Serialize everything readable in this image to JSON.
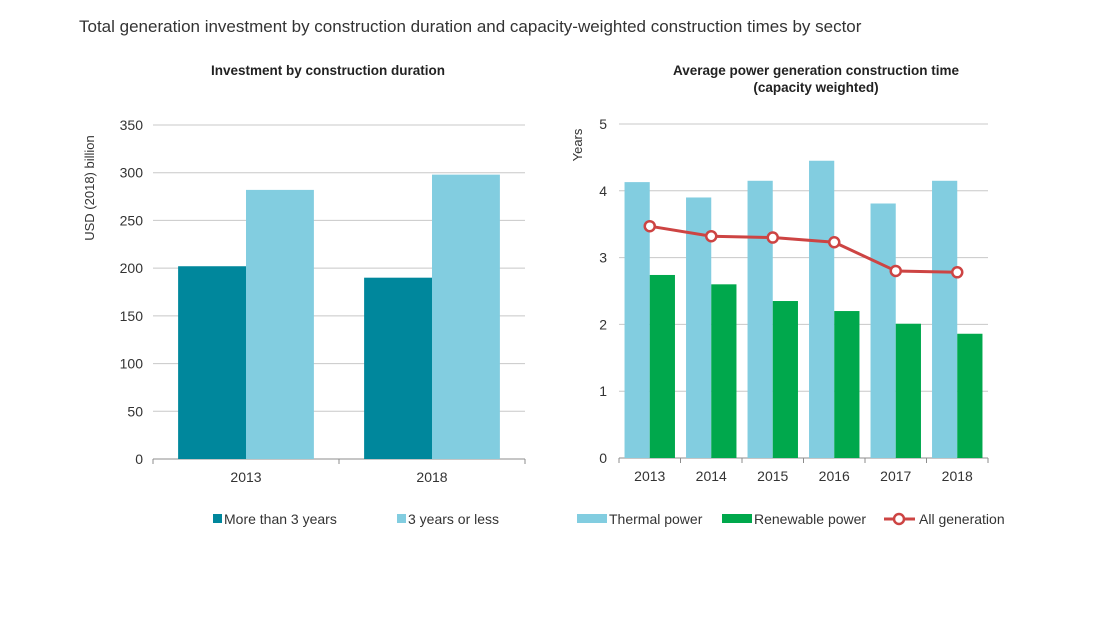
{
  "title": "Total generation investment by construction duration and capacity-weighted construction times by sector",
  "colors": {
    "dark_teal": "#00879c",
    "light_blue": "#82cde0",
    "green": "#00a84c",
    "red_line": "#cd4443",
    "grid": "#c8c8c8",
    "axis": "#8c8c8c"
  },
  "chart_data": [
    {
      "type": "bar",
      "title": "Investment by construction duration",
      "ylabel": "USD (2018) billion",
      "xlabel": "",
      "categories": [
        "2013",
        "2018"
      ],
      "ylim": [
        0,
        350
      ],
      "yticks": [
        0,
        50,
        100,
        150,
        200,
        250,
        300,
        350
      ],
      "series": [
        {
          "name": "More than 3 years",
          "color_key": "dark_teal",
          "values": [
            202,
            190
          ]
        },
        {
          "name": "3 years or less",
          "color_key": "light_blue",
          "values": [
            282,
            298
          ]
        }
      ]
    },
    {
      "type": "bar",
      "title": "Average power generation construction time",
      "title_line2": "(capacity weighted)",
      "ylabel": "Years",
      "xlabel": "",
      "categories": [
        "2013",
        "2014",
        "2015",
        "2016",
        "2017",
        "2018"
      ],
      "ylim": [
        0,
        5
      ],
      "yticks": [
        0,
        1,
        2,
        3,
        4,
        5
      ],
      "series": [
        {
          "name": "Thermal power",
          "type": "bar",
          "color_key": "light_blue",
          "values": [
            4.13,
            3.9,
            4.15,
            4.45,
            3.81,
            4.15
          ]
        },
        {
          "name": "Renewable power",
          "type": "bar",
          "color_key": "green",
          "values": [
            2.74,
            2.6,
            2.35,
            2.2,
            2.01,
            1.86
          ]
        },
        {
          "name": "All generation",
          "type": "line",
          "color_key": "red_line",
          "values": [
            3.47,
            3.32,
            3.3,
            3.23,
            2.8,
            2.78
          ]
        }
      ]
    }
  ]
}
